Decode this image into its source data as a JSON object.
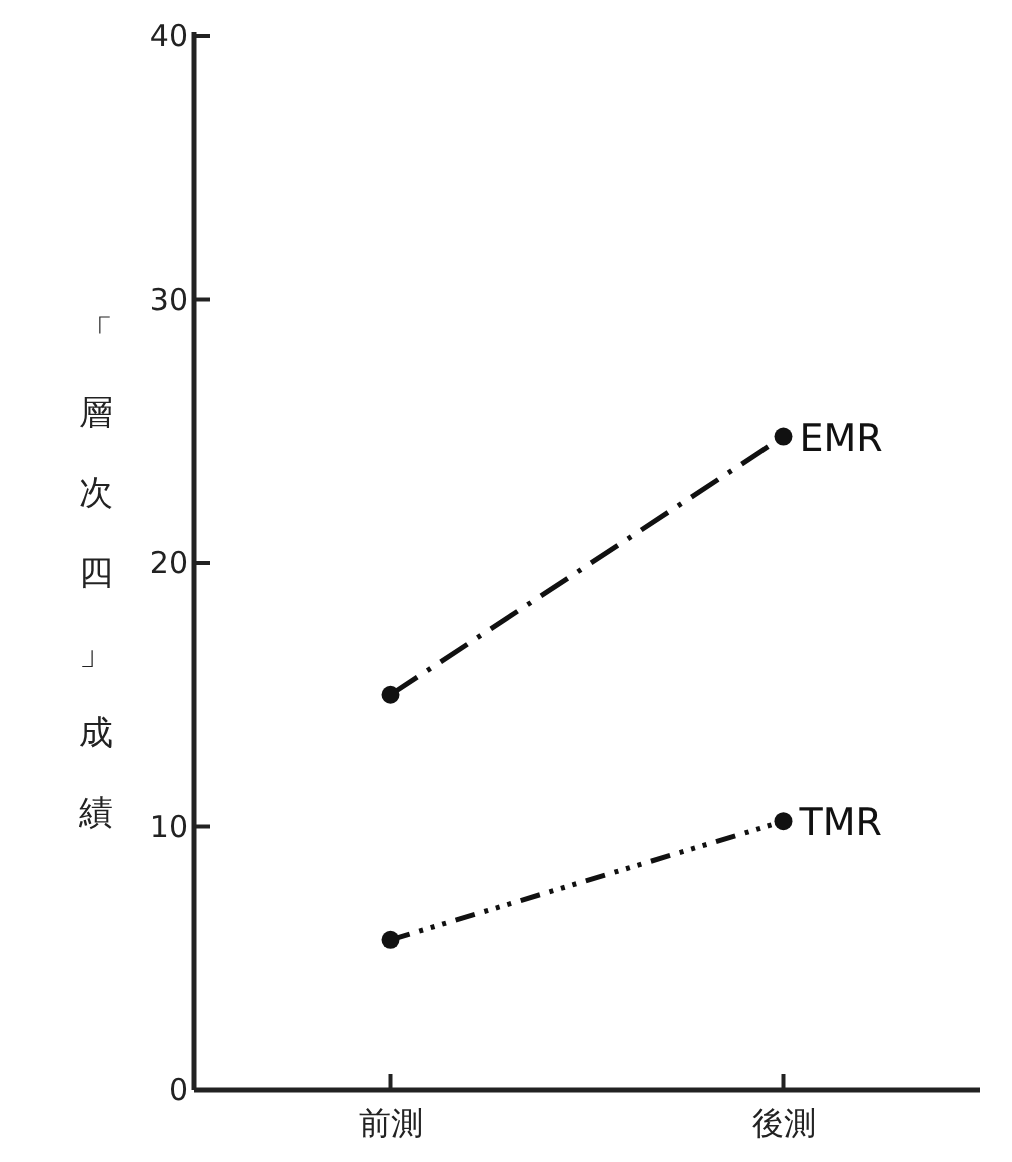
{
  "chart_data": {
    "type": "line",
    "ylabel": "「層次四」成績",
    "categories": [
      "前測",
      "後測"
    ],
    "series": [
      {
        "name": "EMR",
        "color": "#111111",
        "values": [
          15,
          24.8
        ],
        "line_style": "dashed"
      },
      {
        "name": "TMR",
        "color": "#111111",
        "values": [
          5.7,
          10.2
        ],
        "line_style": "dotted"
      }
    ],
    "ylim": [
      0,
      40
    ],
    "yticks": [
      0,
      10,
      20,
      30,
      40
    ],
    "marker": "circle",
    "grid": false,
    "legend": false
  }
}
